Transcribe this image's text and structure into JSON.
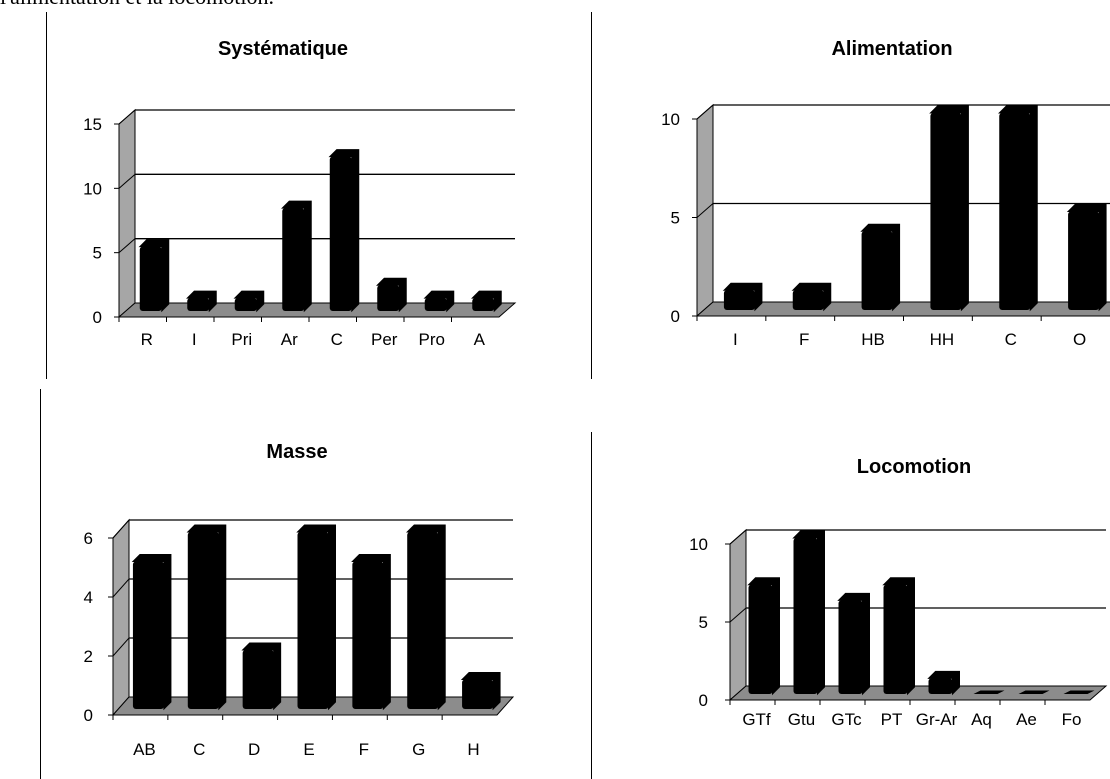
{
  "caption": "l'alimentation et la locomotion.",
  "colors": {
    "bar": "#000000",
    "wall": "#a6a6a6",
    "floor": "#8c8c8c",
    "grid": "#000000"
  },
  "chart_data": [
    {
      "type": "bar",
      "title": "Systématique",
      "categories": [
        "R",
        "I",
        "Pri",
        "Ar",
        "C",
        "Per",
        "Pro",
        "A"
      ],
      "values": [
        5,
        1,
        1,
        8,
        12,
        2,
        1,
        1
      ],
      "ylim": [
        0,
        15
      ],
      "yticks": [
        0,
        5,
        10,
        15
      ],
      "grid": true,
      "xlabel": "",
      "ylabel": ""
    },
    {
      "type": "bar",
      "title": "Alimentation",
      "categories": [
        "I",
        "F",
        "HB",
        "HH",
        "C",
        "O"
      ],
      "values": [
        1,
        1,
        4,
        10,
        10,
        5
      ],
      "ylim": [
        0,
        10
      ],
      "yticks": [
        0,
        5,
        10
      ],
      "grid": true,
      "xlabel": "",
      "ylabel": ""
    },
    {
      "type": "bar",
      "title": "Masse",
      "categories": [
        "AB",
        "C",
        "D",
        "E",
        "F",
        "G",
        "H"
      ],
      "values": [
        5,
        6,
        2,
        6,
        5,
        6,
        1
      ],
      "ylim": [
        0,
        6
      ],
      "yticks": [
        0,
        2,
        4,
        6
      ],
      "grid": true,
      "xlabel": "",
      "ylabel": ""
    },
    {
      "type": "bar",
      "title": "Locomotion",
      "categories": [
        "GTf",
        "Gtu",
        "GTc",
        "PT",
        "Gr-Ar",
        "Aq",
        "Ae",
        "Fo"
      ],
      "values": [
        7,
        10,
        6,
        7,
        1,
        0,
        0,
        0
      ],
      "ylim": [
        0,
        10
      ],
      "yticks": [
        0,
        5,
        10
      ],
      "grid": true,
      "xlabel": "",
      "ylabel": ""
    }
  ]
}
